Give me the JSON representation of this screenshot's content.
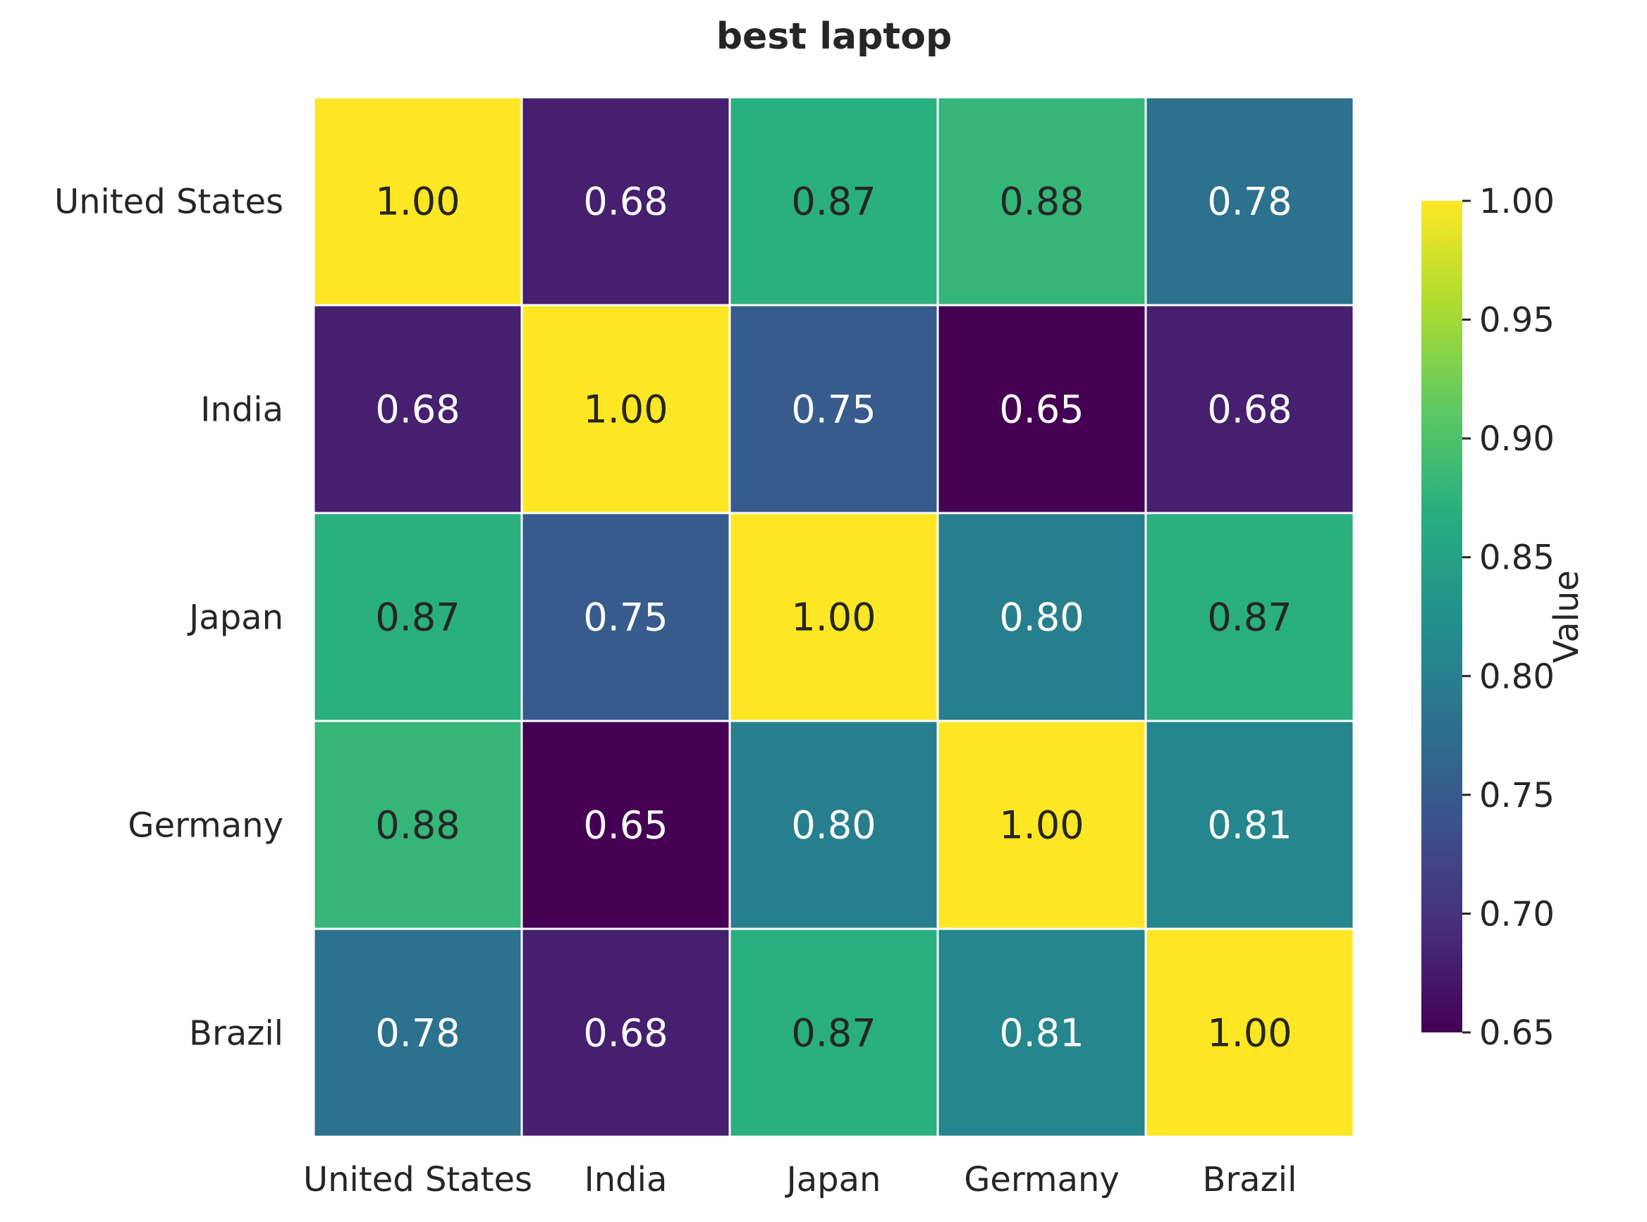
{
  "chart_data": {
    "type": "heatmap",
    "title": "best laptop",
    "rows": [
      "United States",
      "India",
      "Japan",
      "Germany",
      "Brazil"
    ],
    "columns": [
      "United States",
      "India",
      "Japan",
      "Germany",
      "Brazil"
    ],
    "values": [
      [
        1.0,
        0.68,
        0.87,
        0.88,
        0.78
      ],
      [
        0.68,
        1.0,
        0.75,
        0.65,
        0.68
      ],
      [
        0.87,
        0.75,
        1.0,
        0.8,
        0.87
      ],
      [
        0.88,
        0.65,
        0.8,
        1.0,
        0.81
      ],
      [
        0.78,
        0.68,
        0.87,
        0.81,
        1.0
      ]
    ],
    "value_format": "2 decimals",
    "colormap": "viridis",
    "colorbar": {
      "label": "Value",
      "range": [
        0.65,
        1.0
      ],
      "ticks": [
        "0.65",
        "0.70",
        "0.75",
        "0.80",
        "0.85",
        "0.90",
        "0.95",
        "1.00"
      ]
    },
    "colors": {
      "cell_border": "#ffffff",
      "text_on_dark": "#ffffff",
      "text_on_light": "#262626",
      "label_text": "#262626"
    }
  }
}
